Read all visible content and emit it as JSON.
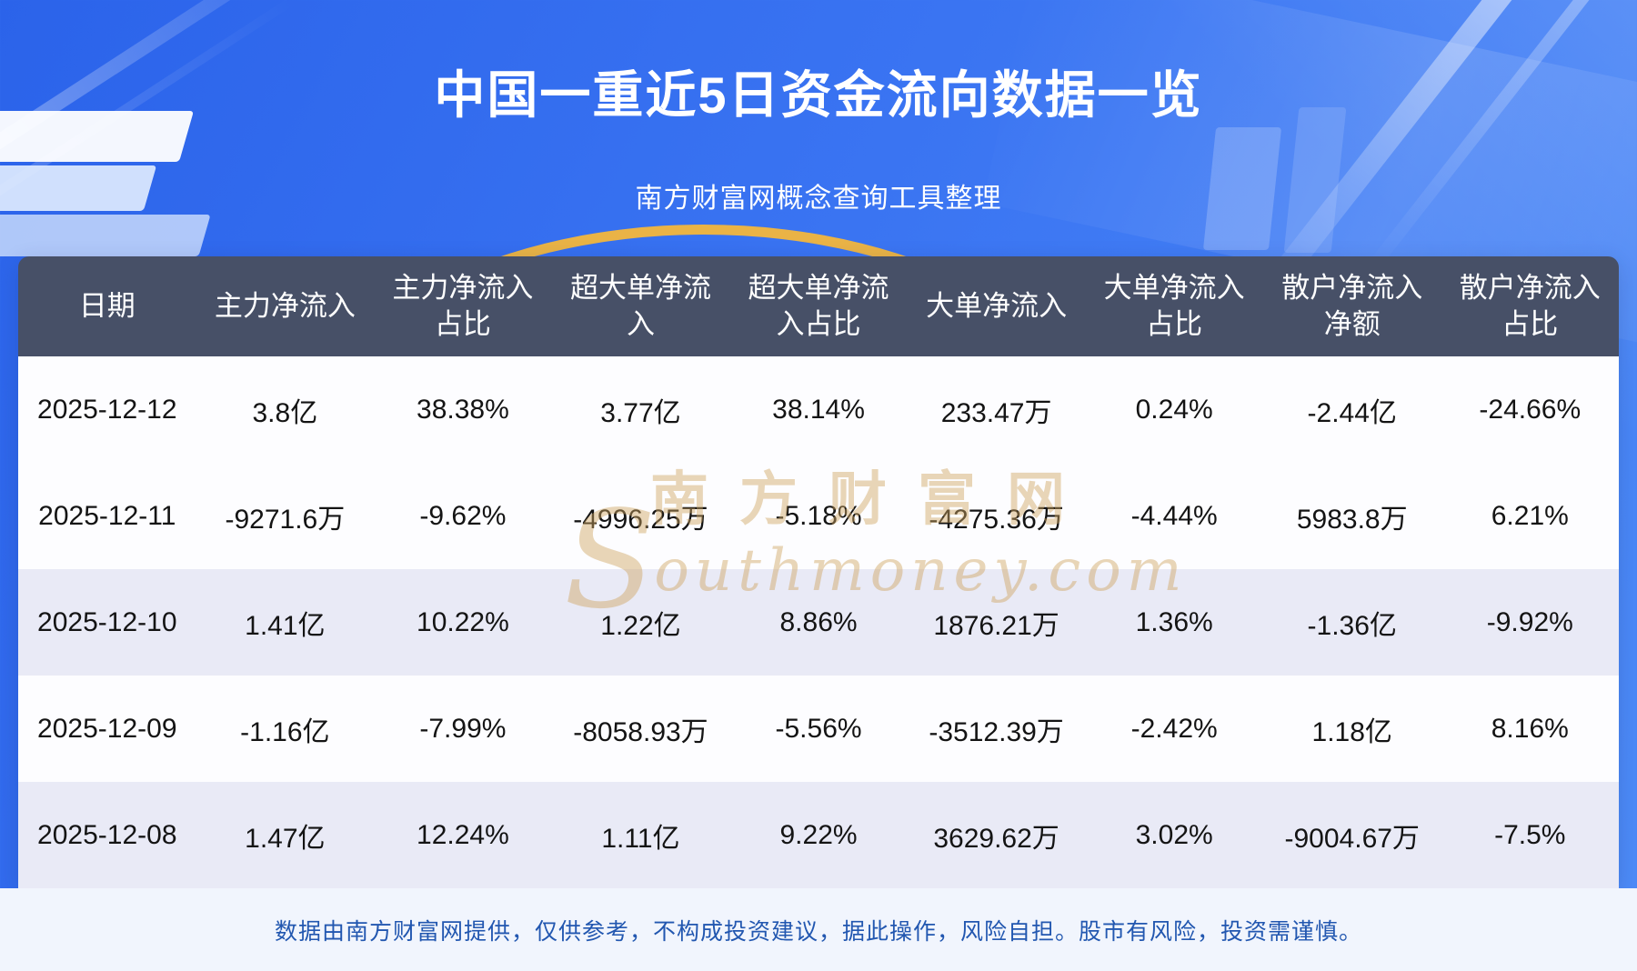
{
  "header": {
    "title": "中国一重近5日资金流向数据一览",
    "subtitle": "南方财富网概念查询工具整理"
  },
  "chart_data": {
    "type": "table",
    "title": "中国一重近5日资金流向数据一览",
    "source_note": "南方财富网概念查询工具整理",
    "columns": [
      "日期",
      "主力净流入",
      "主力净流入占比",
      "超大单净流入",
      "超大单净流入占比",
      "大单净流入",
      "大单净流入占比",
      "散户净流入净额",
      "散户净流入占比"
    ],
    "rows": [
      [
        "2025-12-12",
        "3.8亿",
        "38.38%",
        "3.77亿",
        "38.14%",
        "233.47万",
        "0.24%",
        "-2.44亿",
        "-24.66%"
      ],
      [
        "2025-12-11",
        "-9271.6万",
        "-9.62%",
        "-4996.25万",
        "-5.18%",
        "-4275.36万",
        "-4.44%",
        "5983.8万",
        "6.21%"
      ],
      [
        "2025-12-10",
        "1.41亿",
        "10.22%",
        "1.22亿",
        "8.86%",
        "1876.21万",
        "1.36%",
        "-1.36亿",
        "-9.92%"
      ],
      [
        "2025-12-09",
        "-1.16亿",
        "-7.99%",
        "-8058.93万",
        "-5.56%",
        "-3512.39万",
        "-2.42%",
        "1.18亿",
        "8.16%"
      ],
      [
        "2025-12-08",
        "1.47亿",
        "12.24%",
        "1.11亿",
        "9.22%",
        "3629.62万",
        "3.02%",
        "-9004.67万",
        "-7.5%"
      ]
    ]
  },
  "watermark": {
    "initial": "S",
    "cn": "南方财富网",
    "en_rest": "outhmoney.com"
  },
  "footer": {
    "disclaimer": "数据由南方财富网提供，仅供参考，不构成投资建议，据此操作，风险自担。股市有风险，投资需谨慎。"
  },
  "colors": {
    "background_blue": "#3a74f2",
    "table_header_bg": "#475067",
    "row_white": "#fdfdff",
    "row_alt": "#e9eaf6",
    "accent_gold": "#f3b63c",
    "footer_text_blue": "#2257b0",
    "watermark_gold": "#cea460"
  }
}
